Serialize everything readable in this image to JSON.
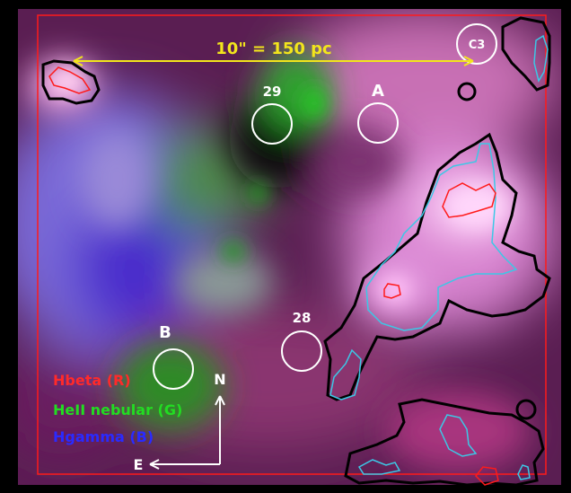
{
  "scale_bar": {
    "label": "10\" = 150 pc",
    "color": "#f2e51c"
  },
  "apertures": {
    "c3": "C3",
    "n29": "29",
    "a": "A",
    "b": "B",
    "n28": "28"
  },
  "compass": {
    "north": "N",
    "east": "E"
  },
  "legend": {
    "red": {
      "text": "Hbeta (R)",
      "color": "#ff2a2a"
    },
    "green": {
      "text": "HeII nebular (G)",
      "color": "#22dd22"
    },
    "blue": {
      "text": "Hgamma (B)",
      "color": "#2a2aff"
    }
  },
  "colors": {
    "frame": "#ff1a1a",
    "contour_outer": "#000000",
    "contour_mid": "#3cc8e6",
    "contour_inner": "#ff1a1a",
    "aperture": "#ffffff"
  }
}
